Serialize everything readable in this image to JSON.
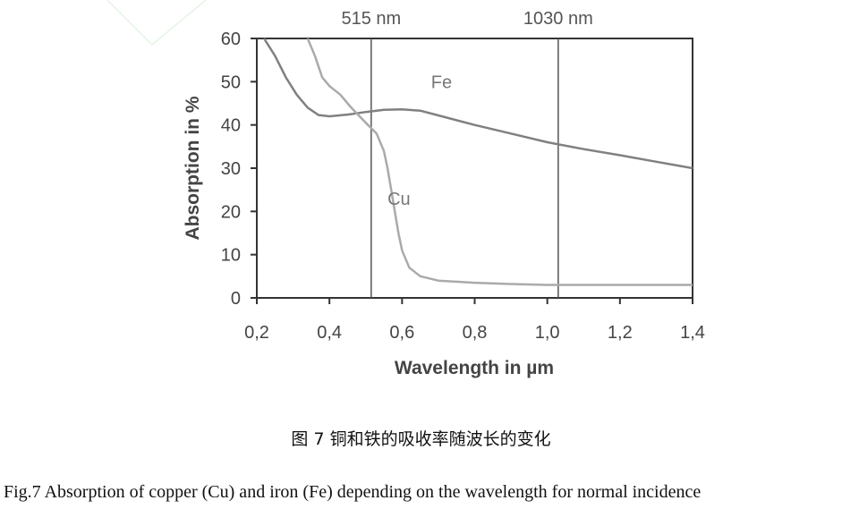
{
  "chart_data": {
    "type": "line",
    "xlabel": "Wavelength in µm",
    "ylabel": "Absorption in %",
    "xlim": [
      0.2,
      1.4
    ],
    "ylim": [
      0,
      60
    ],
    "x_ticks": [
      "0,2",
      "0,4",
      "0,6",
      "0,8",
      "1,0",
      "1,2",
      "1,4"
    ],
    "y_ticks": [
      "0",
      "10",
      "20",
      "30",
      "40",
      "50",
      "60"
    ],
    "grid": false,
    "legend": "inline labels",
    "reference_lines": [
      {
        "x": 0.515,
        "label": "515 nm"
      },
      {
        "x": 1.03,
        "label": "1030 nm"
      }
    ],
    "series": [
      {
        "name": "Fe",
        "color": "#808080",
        "x": [
          0.22,
          0.25,
          0.28,
          0.31,
          0.34,
          0.37,
          0.4,
          0.45,
          0.5,
          0.55,
          0.6,
          0.65,
          0.7,
          0.8,
          0.9,
          1.0,
          1.1,
          1.2,
          1.3,
          1.4
        ],
        "y": [
          60,
          56,
          51,
          47,
          44,
          42.3,
          42,
          42.4,
          43,
          43.5,
          43.6,
          43.3,
          42.2,
          40,
          38,
          36,
          34.4,
          33,
          31.5,
          30
        ]
      },
      {
        "name": "Cu",
        "color": "#aaaaaa",
        "x": [
          0.34,
          0.36,
          0.38,
          0.4,
          0.43,
          0.46,
          0.5,
          0.53,
          0.55,
          0.56,
          0.57,
          0.58,
          0.59,
          0.6,
          0.62,
          0.65,
          0.7,
          0.8,
          0.9,
          1.0,
          1.2,
          1.4
        ],
        "y": [
          60,
          56,
          51,
          49,
          47,
          44,
          40.5,
          38,
          34,
          30,
          25,
          20,
          15,
          11,
          7,
          5,
          4,
          3.5,
          3.2,
          3,
          3,
          3
        ]
      }
    ]
  },
  "captions": {
    "chinese": "图 7  铜和铁的吸收率随波长的变化",
    "english": "Fig.7 Absorption of copper (Cu) and iron (Fe) depending on the wavelength for normal incidence"
  }
}
